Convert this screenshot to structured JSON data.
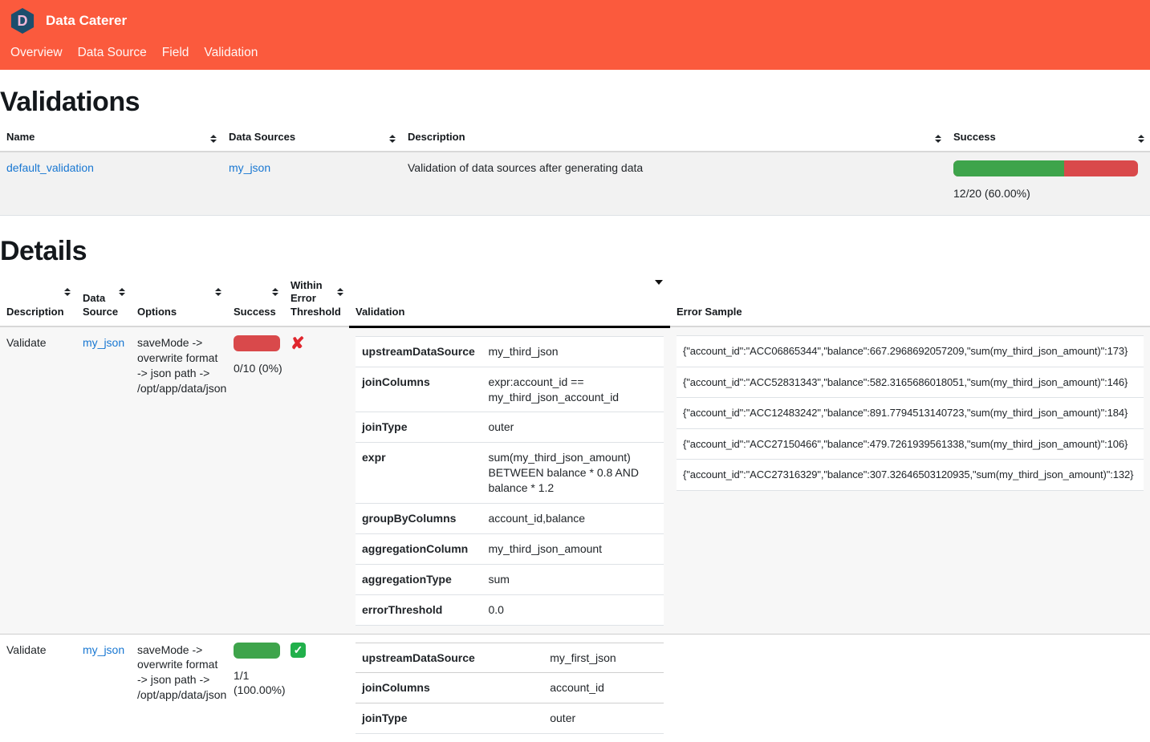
{
  "navbar": {
    "logo_letter": "D",
    "brand": "Data Caterer",
    "links": [
      {
        "label": "Overview"
      },
      {
        "label": "Data Source"
      },
      {
        "label": "Field"
      },
      {
        "label": "Validation"
      }
    ]
  },
  "colors": {
    "navbar_bg": "#fb5a3d",
    "logo_bg": "#1d4e6d",
    "logo_letter": "#f2b9d9",
    "link_blue": "#1877d2",
    "bar_green": "#3ea44b",
    "bar_red": "#d9494b",
    "cross_red": "#e0262d",
    "check_green": "#21b04b"
  },
  "validations": {
    "title": "Validations",
    "columns": [
      "Name",
      "Data Sources",
      "Description",
      "Success"
    ],
    "rows": [
      {
        "name": "default_validation",
        "data_sources": "my_json",
        "description": "Validation of data sources after generating data",
        "success_pct": 60,
        "success_text": "12/20 (60.00%)"
      }
    ]
  },
  "details": {
    "title": "Details",
    "columns": [
      "Description",
      "Data Source",
      "Options",
      "Success",
      "Within Error Threshold",
      "Validation",
      "Error Sample"
    ],
    "rows": [
      {
        "description": "Validate",
        "data_source": "my_json",
        "options": "saveMode -> overwrite format -> json path -> /opt/app/data/json",
        "success_pct": 0,
        "success_text": "0/10 (0%)",
        "within_error_threshold": false,
        "validation": [
          {
            "key": "upstreamDataSource",
            "value": "my_third_json"
          },
          {
            "key": "joinColumns",
            "value": "expr:account_id == my_third_json_account_id"
          },
          {
            "key": "joinType",
            "value": "outer"
          },
          {
            "key": "expr",
            "value": "sum(my_third_json_amount) BETWEEN balance * 0.8 AND balance * 1.2"
          },
          {
            "key": "groupByColumns",
            "value": "account_id,balance"
          },
          {
            "key": "aggregationColumn",
            "value": "my_third_json_amount"
          },
          {
            "key": "aggregationType",
            "value": "sum"
          },
          {
            "key": "errorThreshold",
            "value": "0.0"
          }
        ],
        "error_samples": [
          "{\"account_id\":\"ACC06865344\",\"balance\":667.2968692057209,\"sum(my_third_json_amount)\":173}",
          "{\"account_id\":\"ACC52831343\",\"balance\":582.3165686018051,\"sum(my_third_json_amount)\":146}",
          "{\"account_id\":\"ACC12483242\",\"balance\":891.7794513140723,\"sum(my_third_json_amount)\":184}",
          "{\"account_id\":\"ACC27150466\",\"balance\":479.7261939561338,\"sum(my_third_json_amount)\":106}",
          "{\"account_id\":\"ACC27316329\",\"balance\":307.32646503120935,\"sum(my_third_json_amount)\":132}"
        ]
      },
      {
        "description": "Validate",
        "data_source": "my_json",
        "options": "saveMode -> overwrite format -> json path -> /opt/app/data/json",
        "success_pct": 100,
        "success_text": "1/1 (100.00%)",
        "within_error_threshold": true,
        "validation": [
          {
            "key": "upstreamDataSource",
            "value": "my_first_json"
          },
          {
            "key": "joinColumns",
            "value": "account_id"
          },
          {
            "key": "joinType",
            "value": "outer"
          }
        ],
        "error_samples": []
      }
    ]
  }
}
